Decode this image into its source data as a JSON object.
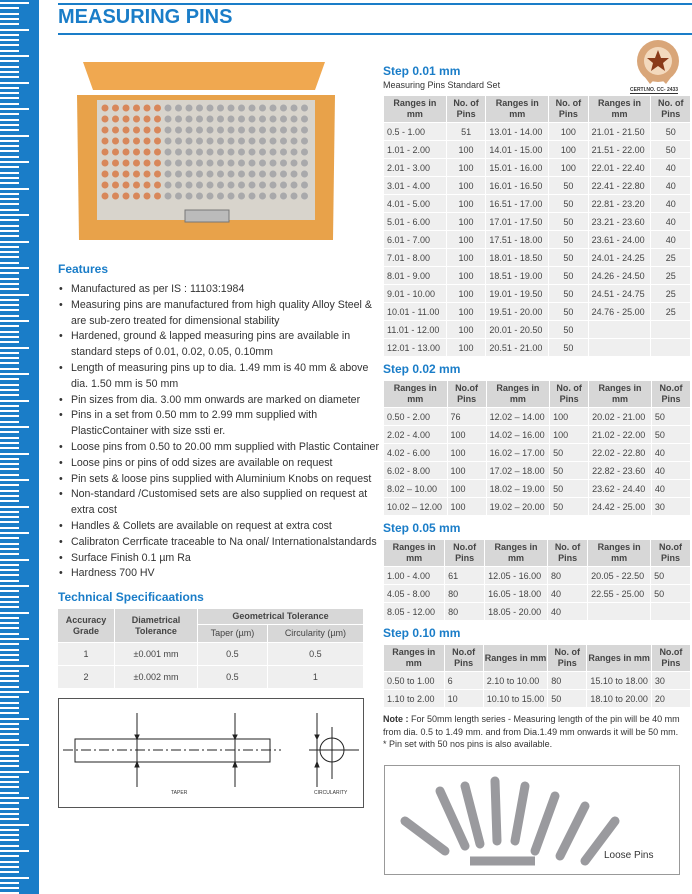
{
  "header": {
    "title": "MEASURING PINS",
    "logo_text": "CERTI.NO. CC- 2433"
  },
  "colors": {
    "accent": "#1a7dc8",
    "table_header": "#d7d7d7",
    "table_cell": "#efefef",
    "wood": "#e8a24a"
  },
  "features": {
    "heading": "Features",
    "items": [
      "Manufactured as per IS : 11103:1984",
      "Measuring pins are manufactured from high quality Alloy Steel & are sub-zero treated for dimensional stability",
      "Hardened, ground & lapped measuring pins are available in standard steps of 0.01, 0.02, 0.05, 0.10mm",
      "Length of measuring pins up to dia. 1.49 mm is 40 mm & above  dia. 1.50 mm is 50 mm",
      "Pin sizes from dia. 3.00 mm onwards are marked on diameter",
      "Pins in a set from 0.50 mm to 2.99 mm supplied with PlasticContainer with size ssti er.",
      "Loose pins from 0.50 to 20.00 mm supplied with Plastic Container",
      "Loose pins or pins of odd sizes are available on request",
      "Pin sets & loose pins supplied with Aluminium Knobs on request",
      "Non-standard /Customised sets are also supplied on request at extra cost",
      "Handles & Collets are available on request at extra cost",
      "Calibraton Cerrficate traceable to Na                    onal/ Internationalstandards",
      "Surface Finish 0.1 µm Ra",
      "Hardness 700 HV"
    ]
  },
  "tech": {
    "heading": "Technical Specificaations",
    "headers": {
      "grade": "Accuracy Grade",
      "diam": "Diametrical Tolerance",
      "geo": "Geometrical Tolerance",
      "taper": "Taper (µm)",
      "circ": "Circularity (µm)"
    },
    "rows": [
      [
        "1",
        "±0.001 mm",
        "0.5",
        "0.5"
      ],
      [
        "2",
        "±0.002 mm",
        "0.5",
        "1"
      ]
    ],
    "diagram": {
      "taper_label": "TAPER",
      "circ_label": "CIRCULARITY"
    }
  },
  "step001": {
    "heading": "Step 0.01 mm",
    "subheading": "Measuring Pins Standard Set",
    "headers": [
      "Ranges in mm",
      "No. of Pins",
      "Ranges in mm",
      "No. of Pins",
      "Ranges in mm",
      "No. of Pins"
    ],
    "rows": [
      [
        "0.5 - 1.00",
        "51",
        "13.01 - 14.00",
        "100",
        "21.01 - 21.50",
        "50"
      ],
      [
        "1.01 - 2.00",
        "100",
        "14.01 - 15.00",
        "100",
        "21.51 - 22.00",
        "50"
      ],
      [
        "2.01 - 3.00",
        "100",
        "15.01 - 16.00",
        "100",
        "22.01 - 22.40",
        "40"
      ],
      [
        "3.01 - 4.00",
        "100",
        "16.01 - 16.50",
        "50",
        "22.41 - 22.80",
        "40"
      ],
      [
        "4.01 - 5.00",
        "100",
        "16.51 - 17.00",
        "50",
        "22.81 - 23.20",
        "40"
      ],
      [
        "5.01 - 6.00",
        "100",
        "17.01 - 17.50",
        "50",
        "23.21 - 23.60",
        "40"
      ],
      [
        "6.01 - 7.00",
        "100",
        "17.51 - 18.00",
        "50",
        "23.61 - 24.00",
        "40"
      ],
      [
        "7.01 - 8.00",
        "100",
        "18.01 - 18.50",
        "50",
        "24.01 - 24.25",
        "25"
      ],
      [
        "8.01 - 9.00",
        "100",
        "18.51 - 19.00",
        "50",
        "24.26 - 24.50",
        "25"
      ],
      [
        "9.01 - 10.00",
        "100",
        "19.01 - 19.50",
        "50",
        "24.51 - 24.75",
        "25"
      ],
      [
        "10.01 - 11.00",
        "100",
        "19.51 - 20.00",
        "50",
        "24.76 - 25.00",
        "25"
      ],
      [
        "11.01 - 12.00",
        "100",
        "20.01 - 20.50",
        "50",
        "",
        ""
      ],
      [
        "12.01 - 13.00",
        "100",
        "20.51 - 21.00",
        "50",
        "",
        ""
      ]
    ]
  },
  "step002": {
    "heading": "Step 0.02 mm",
    "headers": [
      "Ranges in mm",
      "No.of Pins",
      "Ranges in mm",
      "No. of Pins",
      "Ranges in mm",
      "No.of Pins"
    ],
    "rows": [
      [
        "0.50 - 2.00",
        "76",
        "12.02 – 14.00",
        "100",
        "20.02 - 21.00",
        "50"
      ],
      [
        "2.02 - 4.00",
        "100",
        "14.02 – 16.00",
        "100",
        "21.02 - 22.00",
        "50"
      ],
      [
        "4.02 - 6.00",
        "100",
        "16.02 – 17.00",
        "50",
        "22.02 - 22.80",
        "40"
      ],
      [
        "6.02 - 8.00",
        "100",
        "17.02 – 18.00",
        "50",
        "22.82 - 23.60",
        "40"
      ],
      [
        "8.02 – 10.00",
        "100",
        "18.02 – 19.00",
        "50",
        "23.62 - 24.40",
        "40"
      ],
      [
        "10.02 – 12.00",
        "100",
        "19.02 – 20.00",
        "50",
        "24.42 - 25.00",
        "30"
      ]
    ]
  },
  "step005": {
    "heading": "Step 0.05 mm",
    "headers": [
      "Ranges in mm",
      "No.of Pins",
      "Ranges in mm",
      "No. of Pins",
      "Ranges in mm",
      "No.of Pins"
    ],
    "rows": [
      [
        "1.00 - 4.00",
        "61",
        "12.05 - 16.00",
        "80",
        "20.05 - 22.50",
        "50"
      ],
      [
        "4.05 - 8.00",
        "80",
        "16.05 - 18.00",
        "40",
        "22.55 - 25.00",
        "50"
      ],
      [
        "8.05 - 12.00",
        "80",
        "18.05 - 20.00",
        "40",
        "",
        ""
      ]
    ]
  },
  "step010": {
    "heading": "Step 0.10 mm",
    "headers": [
      "Ranges in mm",
      "No.of Pins",
      "Ranges in mm",
      "No. of Pins",
      "Ranges in mm",
      "No.of Pins"
    ],
    "rows": [
      [
        "0.50 to 1.00",
        "6",
        "2.10 to 10.00",
        "80",
        "15.10 to 18.00",
        "30"
      ],
      [
        "1.10 to 2.00",
        "10",
        "10.10 to 15.00",
        "50",
        "18.10 to 20.00",
        "20"
      ]
    ]
  },
  "note": {
    "label": "Note :",
    "text": " For 50mm length series - Measuring length of the pin will be 40 mm from dia. 0.5 to 1.49 mm. and  from Dia.1.49 mm  onwards  it will be  50 mm.",
    "extra": "* Pin set with 50 nos pins is also available."
  },
  "loose_pins": {
    "caption": "Loose Pins"
  }
}
